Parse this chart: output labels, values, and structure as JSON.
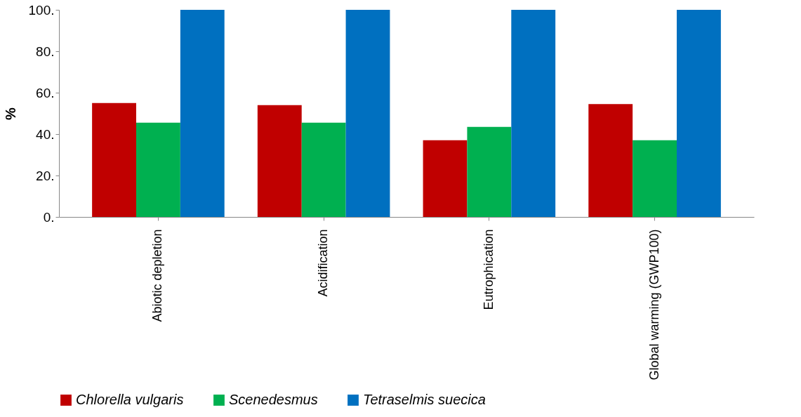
{
  "chart_data": {
    "type": "bar",
    "ylabel": "%",
    "categories": [
      "Abiotic depletion",
      "Acidification",
      "Eutrophication",
      "Global warming (GWP100)"
    ],
    "series": [
      {
        "name": "Chlorella vulgaris",
        "color": "#c00000",
        "values": [
          55,
          54,
          37,
          54.5
        ]
      },
      {
        "name": "Scenedesmus",
        "color": "#00b050",
        "values": [
          45.5,
          45.5,
          43.5,
          37
        ]
      },
      {
        "name": "Tetraselmis suecica",
        "color": "#0070c0",
        "values": [
          100,
          100,
          100,
          100
        ]
      }
    ],
    "ylim": [
      0,
      100
    ],
    "yticks": [
      {
        "value": 0,
        "label": "0."
      },
      {
        "value": 20,
        "label": "20."
      },
      {
        "value": 40,
        "label": "40."
      },
      {
        "value": 60,
        "label": "60."
      },
      {
        "value": 80,
        "label": "80."
      },
      {
        "value": 100,
        "label": "100."
      }
    ],
    "grid": false,
    "legend": "bottom"
  }
}
